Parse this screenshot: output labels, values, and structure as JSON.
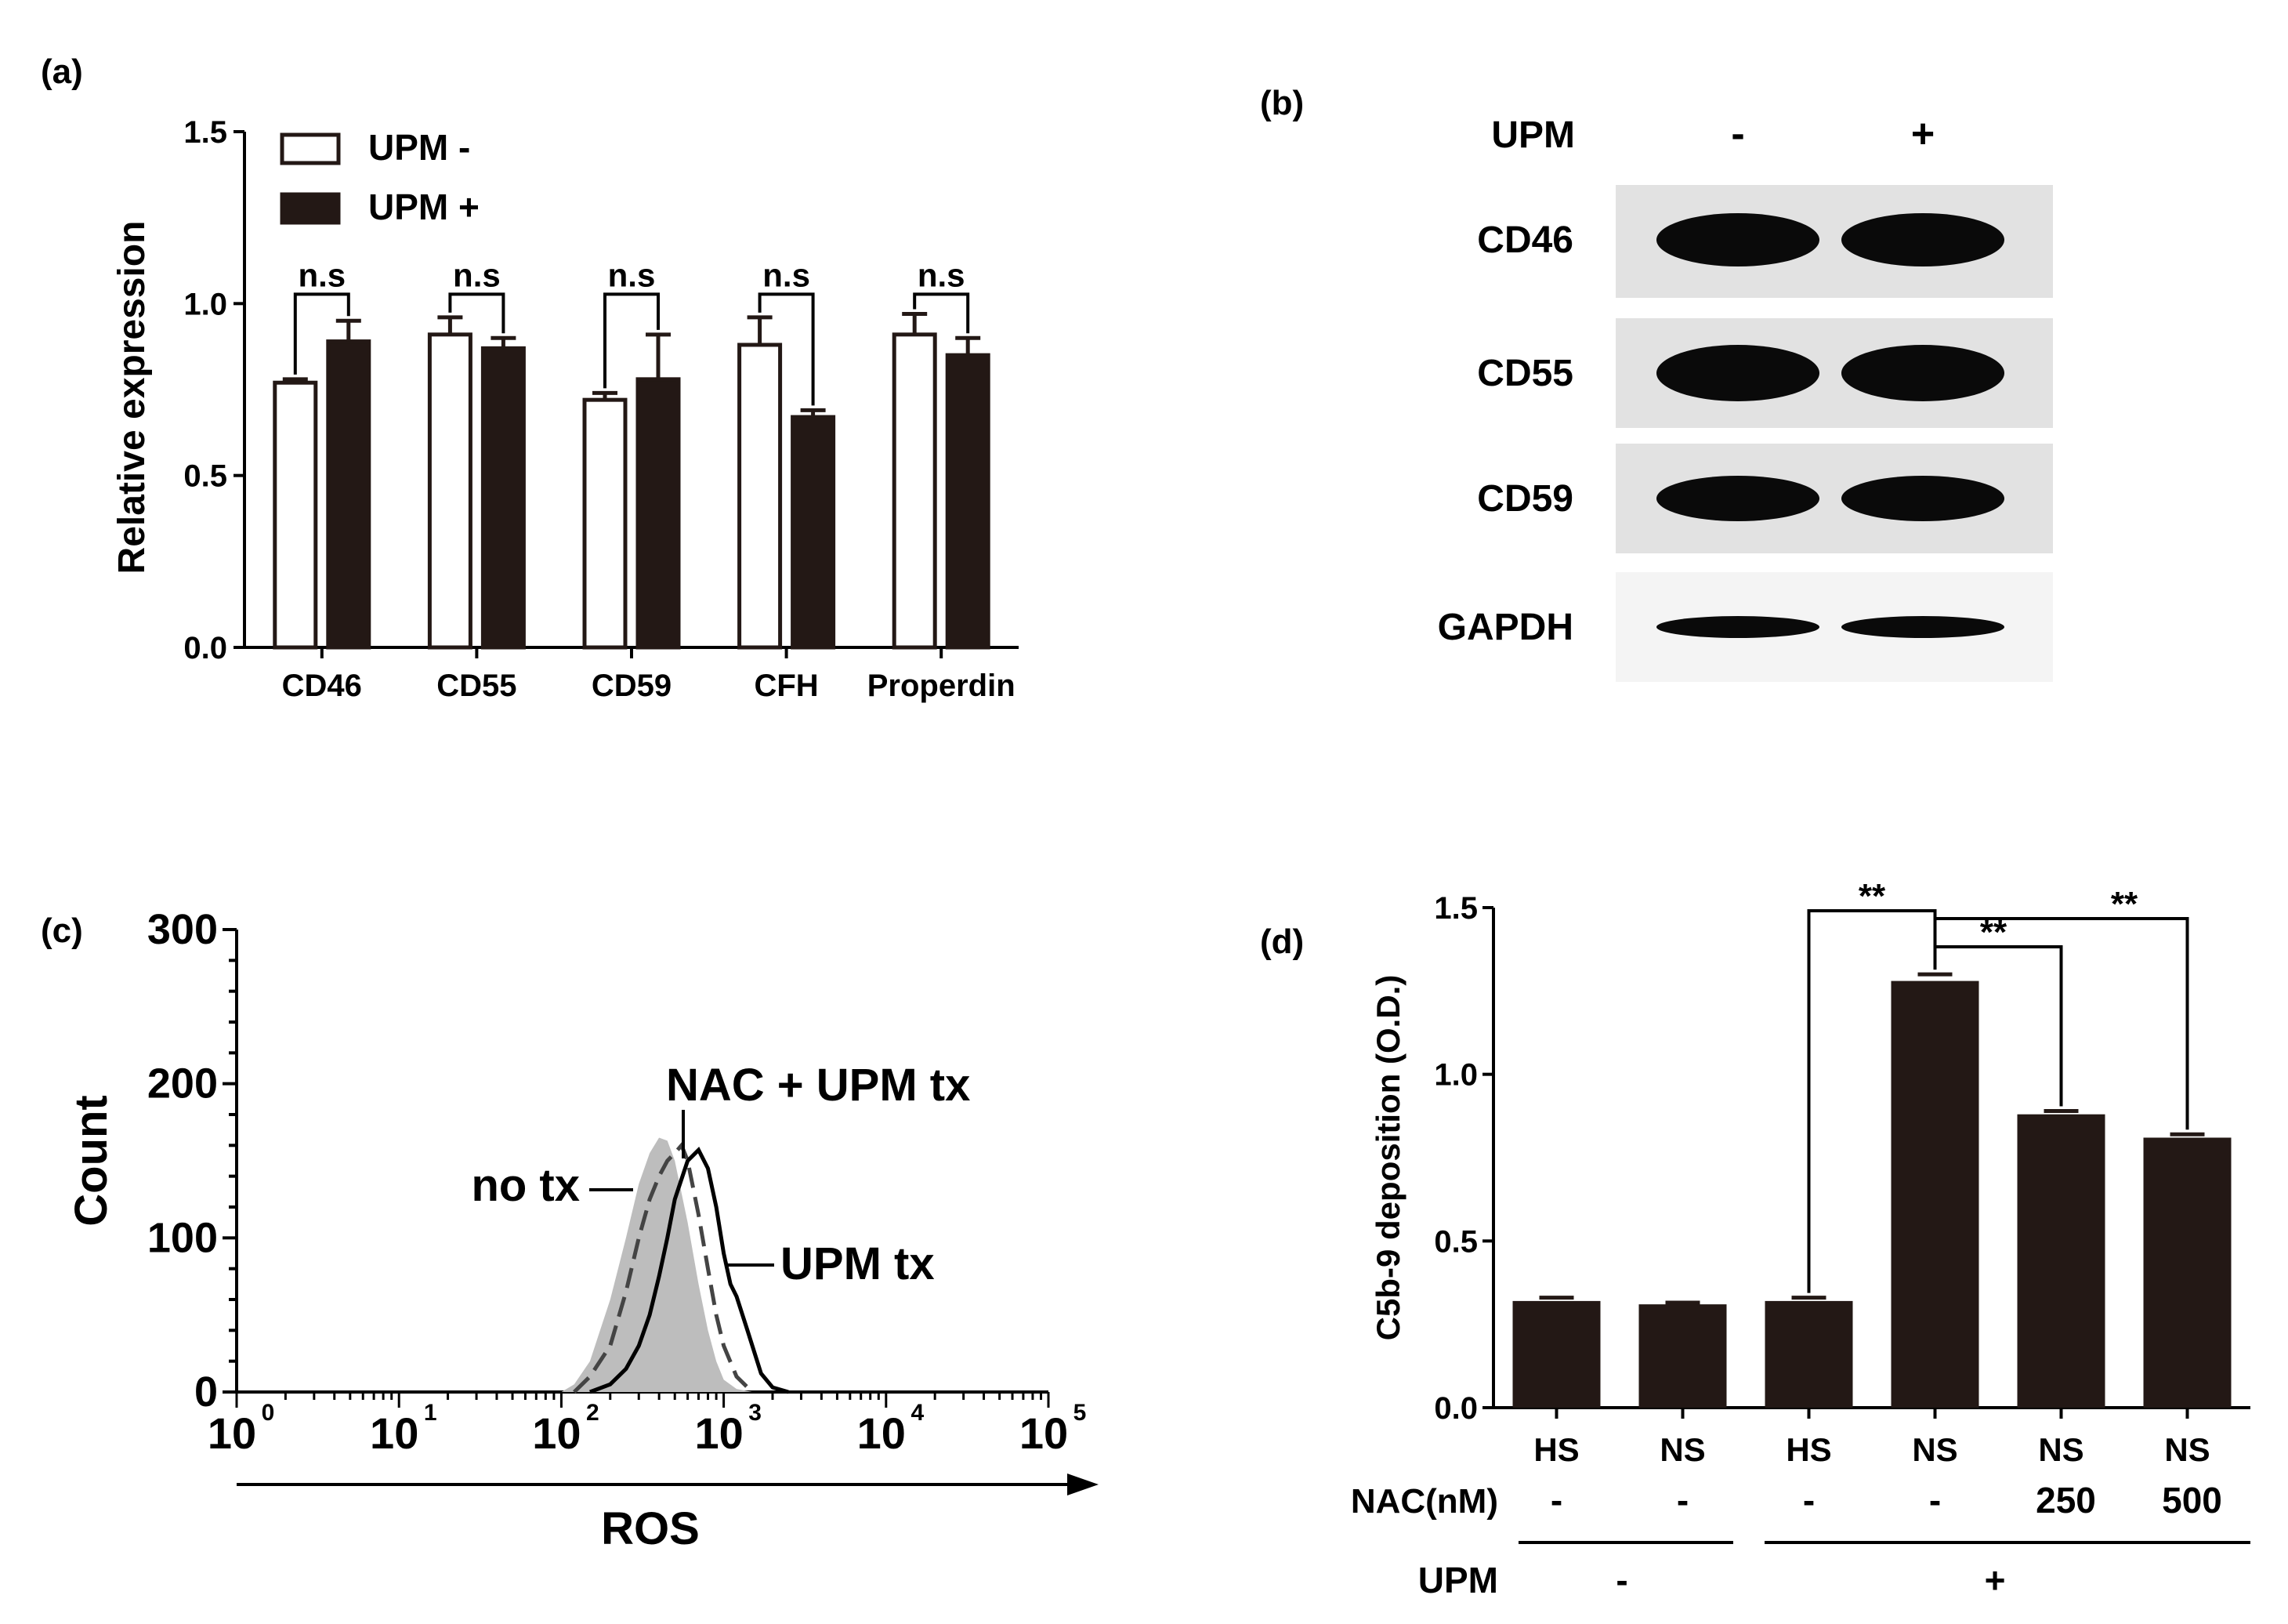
{
  "chart_data": [
    {
      "panel": "(a)",
      "type": "bar",
      "ylabel": "Relative expression",
      "ylim": [
        0,
        1.5
      ],
      "yticks": [
        "0.0",
        "0.5",
        "1.0",
        "1.5"
      ],
      "categories": [
        "CD46",
        "CD55",
        "CD59",
        "CFH",
        "Properdin"
      ],
      "legend_position": "top-left",
      "series": [
        {
          "name": "UPM -",
          "values": [
            0.77,
            0.91,
            0.72,
            0.88,
            0.91
          ],
          "errors": [
            0.01,
            0.05,
            0.02,
            0.08,
            0.06
          ],
          "color": "#ffffff"
        },
        {
          "name": "UPM +",
          "values": [
            0.89,
            0.87,
            0.78,
            0.67,
            0.85
          ],
          "errors": [
            0.06,
            0.03,
            0.13,
            0.02,
            0.05
          ],
          "color": "#231815"
        }
      ],
      "annotations": [
        "n.s",
        "n.s",
        "n.s",
        "n.s",
        "n.s"
      ]
    },
    {
      "panel": "(d)",
      "type": "bar",
      "ylabel": "C5b-9 deposition (O.D.)",
      "ylim": [
        0,
        1.5
      ],
      "yticks": [
        "0.0",
        "0.5",
        "1.0",
        "1.5"
      ],
      "categories": [
        "HS",
        "NS",
        "HS",
        "NS",
        "NS",
        "NS"
      ],
      "values": [
        0.32,
        0.31,
        0.32,
        1.28,
        0.88,
        0.81
      ],
      "errors": [
        0.01,
        0.005,
        0.01,
        0.02,
        0.01,
        0.01
      ],
      "color": "#231815",
      "nac_label": "NAC(nM)",
      "nac": [
        "-",
        "-",
        "-",
        "-",
        "250",
        "500"
      ],
      "upm_label": "UPM",
      "upm": [
        "-",
        "+"
      ],
      "significance": [
        "**",
        "**",
        "**"
      ]
    },
    {
      "panel": "(c)",
      "type": "line",
      "xlabel": "ROS",
      "ylabel": "Count",
      "xscale": "log",
      "xlim": [
        1,
        100000
      ],
      "ylim": [
        0,
        300
      ],
      "xticks": [
        {
          "base": "10",
          "exp": "0"
        },
        {
          "base": "10",
          "exp": "1"
        },
        {
          "base": "10",
          "exp": "2"
        },
        {
          "base": "10",
          "exp": "3"
        },
        {
          "base": "10",
          "exp": "4"
        },
        {
          "base": "10",
          "exp": "5"
        }
      ],
      "yticks": [
        "0",
        "100",
        "200",
        "300"
      ],
      "series": [
        {
          "name": "no tx",
          "style": "filled",
          "color": "#bdbdbd",
          "x": [
            100,
            120,
            150,
            200,
            250,
            300,
            350,
            400,
            450,
            500,
            600,
            700,
            800,
            900,
            1000,
            1200,
            1500
          ],
          "y": [
            0,
            5,
            20,
            60,
            100,
            135,
            155,
            165,
            163,
            150,
            110,
            70,
            40,
            20,
            8,
            2,
            0
          ]
        },
        {
          "name": "NAC + UPM tx",
          "style": "dashed",
          "color": "#444444",
          "x": [
            120,
            150,
            200,
            250,
            300,
            350,
            400,
            450,
            500,
            550,
            600,
            700,
            800,
            900,
            1000,
            1200,
            1500
          ],
          "y": [
            0,
            10,
            30,
            65,
            100,
            125,
            140,
            150,
            155,
            160,
            150,
            115,
            80,
            50,
            30,
            10,
            0
          ]
        },
        {
          "name": "UPM tx",
          "style": "solid",
          "color": "#000000",
          "x": [
            150,
            200,
            250,
            300,
            350,
            400,
            450,
            500,
            600,
            700,
            800,
            900,
            1000,
            1100,
            1200,
            1400,
            1700,
            2000,
            2500
          ],
          "y": [
            0,
            5,
            15,
            30,
            50,
            75,
            100,
            125,
            150,
            157,
            145,
            120,
            90,
            70,
            62,
            40,
            12,
            3,
            0
          ]
        }
      ],
      "labels": [
        "no tx",
        "NAC + UPM tx",
        "UPM tx"
      ]
    }
  ],
  "blot": {
    "panel": "(b)",
    "header": "UPM",
    "lanes": [
      "-",
      "+"
    ],
    "rows": [
      "CD46",
      "CD55",
      "CD59",
      "GAPDH"
    ]
  }
}
